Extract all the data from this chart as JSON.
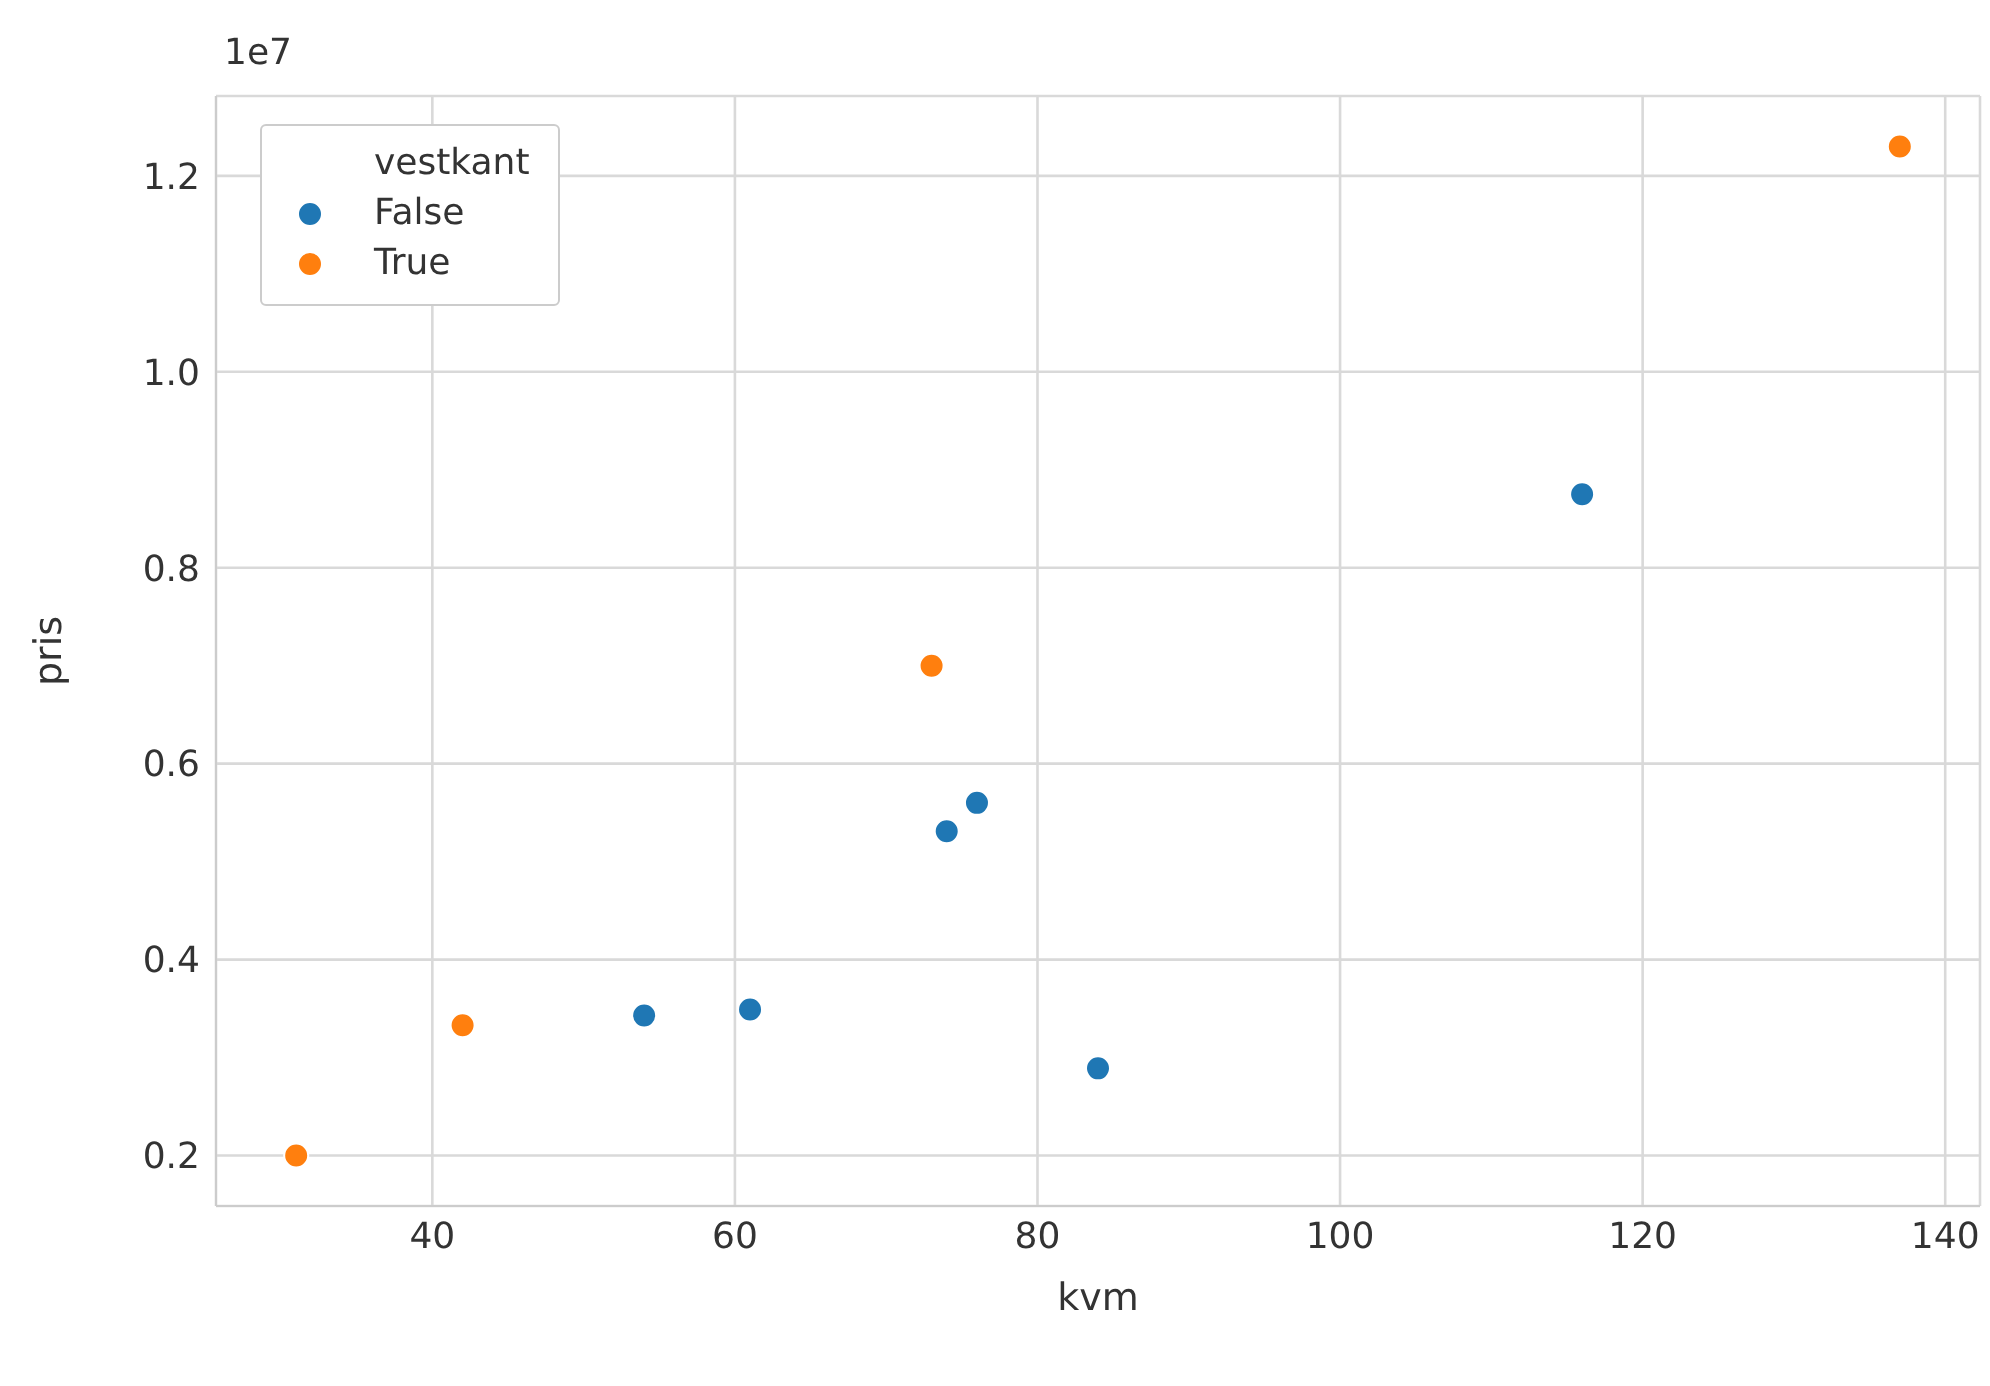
{
  "chart_data": {
    "type": "scatter",
    "xlabel": "kvm",
    "ylabel": "pris",
    "legend_title": "vestkant",
    "annotations": [
      "1e7"
    ],
    "xlim": [
      25.7,
      142.3
    ],
    "xticks": [
      40,
      60,
      80,
      100,
      120,
      140
    ],
    "ylim": [
      0.1485,
      1.2815
    ],
    "yticks": [
      0.2,
      0.4,
      0.6,
      0.8,
      {
        "value": 1,
        "label": "1.0"
      },
      1.2
    ],
    "grid": true,
    "legend": "top left",
    "marker": "circle",
    "series": [
      {
        "name": "False",
        "color": "#1f77b4",
        "x": [
          54,
          61,
          74,
          76,
          84,
          116
        ],
        "values": [
          0.343,
          0.349,
          0.531,
          0.56,
          0.289,
          0.875
        ]
      },
      {
        "name": "True",
        "color": "#ff7f0e",
        "x": [
          31,
          42,
          73,
          137
        ],
        "values": [
          0.2,
          0.333,
          0.7,
          1.23
        ]
      }
    ]
  }
}
